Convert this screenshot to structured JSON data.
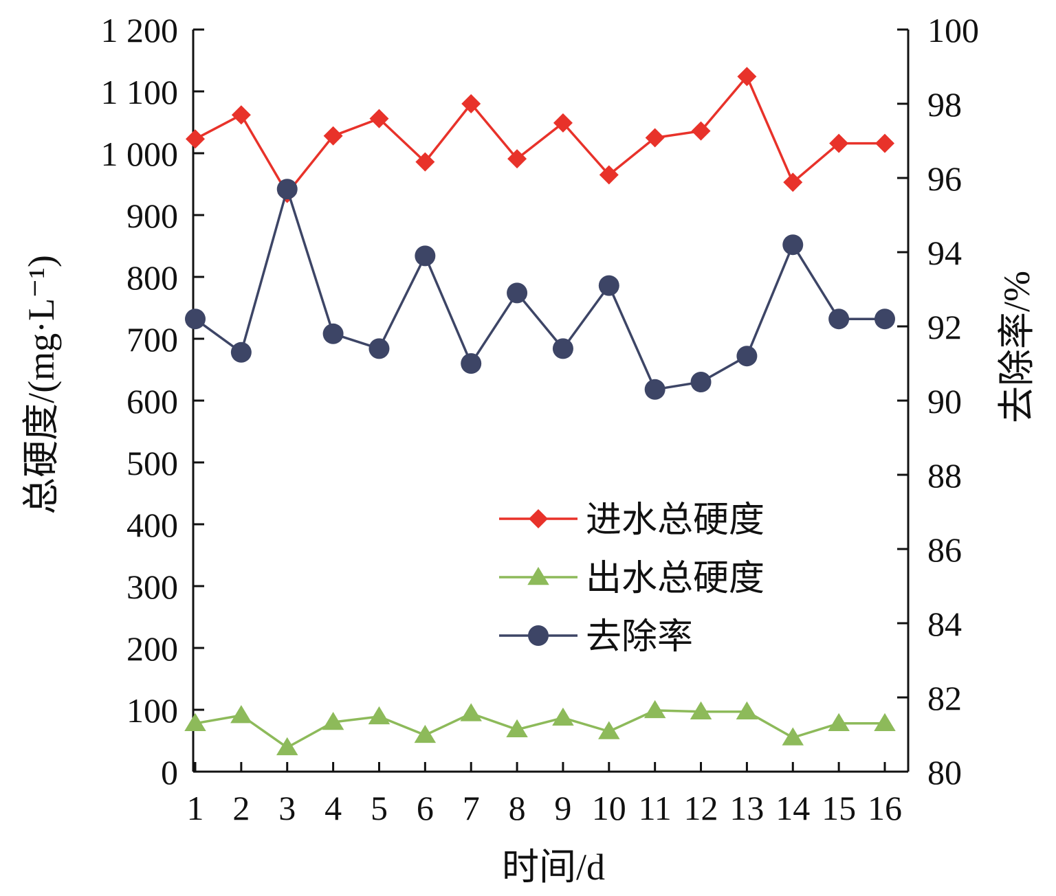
{
  "chart_data": {
    "type": "line",
    "x": [
      1,
      2,
      3,
      4,
      5,
      6,
      7,
      8,
      9,
      10,
      11,
      12,
      13,
      14,
      15,
      16
    ],
    "x_tick_labels": [
      "1",
      "2",
      "3",
      "4",
      "5",
      "6",
      "7",
      "8",
      "9",
      "10",
      "11",
      "12",
      "13",
      "14",
      "15",
      "16"
    ],
    "xlabel": "时间/d",
    "ylabel_left": "总硬度/(mg·L⁻¹)",
    "ylabel_right": "去除率/%",
    "ylim_left": [
      0,
      1200
    ],
    "ylim_right": [
      80,
      100
    ],
    "y_left_tick_labels": [
      "0",
      "100",
      "200",
      "300",
      "400",
      "500",
      "600",
      "700",
      "800",
      "900",
      "1 000",
      "1 100",
      "1 200"
    ],
    "y_right_tick_labels": [
      "80",
      "82",
      "84",
      "86",
      "88",
      "90",
      "92",
      "94",
      "96",
      "98",
      "100"
    ],
    "y_left_ticks": [
      0,
      100,
      200,
      300,
      400,
      500,
      600,
      700,
      800,
      900,
      1000,
      1100,
      1200
    ],
    "y_right_ticks": [
      80,
      82,
      84,
      86,
      88,
      90,
      92,
      94,
      96,
      98,
      100
    ],
    "grid": false,
    "legend_position": "center-right",
    "series": [
      {
        "name": "进水总硬度",
        "axis": "left",
        "marker": "diamond",
        "color": "#e8322a",
        "values": [
          1023,
          1062,
          935,
          1028,
          1056,
          986,
          1080,
          991,
          1049,
          965,
          1025,
          1036,
          1124,
          953,
          1016,
          1016
        ]
      },
      {
        "name": "出水总硬度",
        "axis": "left",
        "marker": "triangle",
        "color": "#8dba5a",
        "values": [
          78,
          91,
          39,
          80,
          89,
          59,
          94,
          68,
          87,
          65,
          99,
          97,
          97,
          55,
          78,
          78
        ]
      },
      {
        "name": "去除率",
        "axis": "right",
        "marker": "circle",
        "color": "#3d4566",
        "values": [
          92.2,
          91.3,
          95.7,
          91.8,
          91.4,
          93.9,
          91.0,
          92.9,
          91.4,
          93.1,
          90.3,
          90.5,
          91.2,
          94.2,
          92.2,
          92.2
        ]
      }
    ]
  }
}
